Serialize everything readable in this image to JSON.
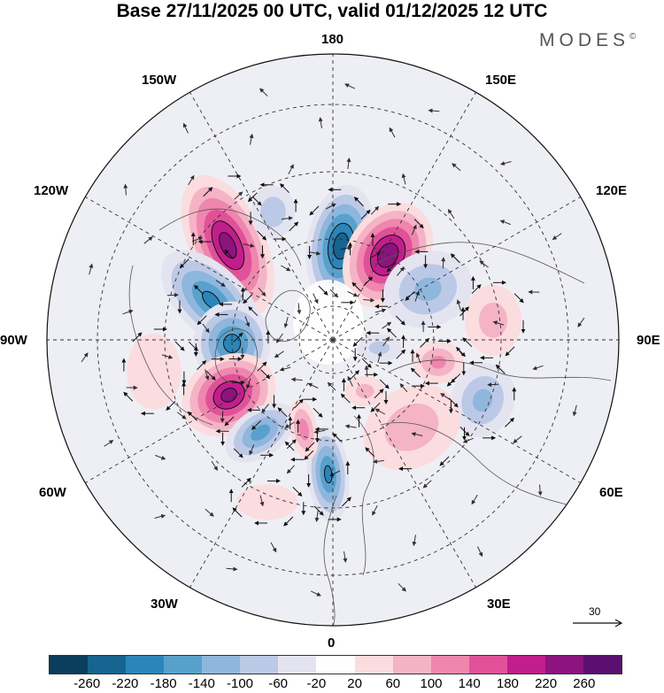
{
  "title": "Base 27/11/2025 00 UTC, valid 01/12/2025 12 UTC",
  "brand": "MODES",
  "brand_mark": "©",
  "longitudes": {
    "top": "180",
    "bottom": "0",
    "left": "90W",
    "right": "90E",
    "upper_left_outer": "150W",
    "upper_right_outer": "150E",
    "upper_left_inner": "120W",
    "upper_right_inner": "120E",
    "lower_left_inner": "60W",
    "lower_right_inner": "60E",
    "lower_left_outer": "30W",
    "lower_right_outer": "30E"
  },
  "vector_reference": {
    "label": "30"
  },
  "colorbar": {
    "colors": [
      "#0b3d5c",
      "#16648f",
      "#2b85ba",
      "#58a1cd",
      "#8fb6dc",
      "#bcc9e6",
      "#e4e4f1",
      "#ffffff",
      "#fbdcdf",
      "#f5b3c6",
      "#ef86ae",
      "#e0519a",
      "#c21d8d",
      "#8d137f",
      "#5a0f6e"
    ],
    "ticks": [
      "-260",
      "-220",
      "-180",
      "-140",
      "-100",
      "-60",
      "-20",
      "20",
      "60",
      "100",
      "140",
      "180",
      "220",
      "260"
    ]
  },
  "anomalies": [
    {
      "name": "blue-aleutian",
      "lat": 62,
      "lon": 175,
      "value": -250,
      "rx": 42,
      "ry": 75,
      "rot": 8
    },
    {
      "name": "magenta-east-siberia",
      "lat": 60,
      "lon": 147,
      "value": 255,
      "rx": 50,
      "ry": 68,
      "rot": 30
    },
    {
      "name": "magenta-alaska",
      "lat": 48,
      "lon": -132,
      "value": 240,
      "rx": 46,
      "ry": 92,
      "rot": -25
    },
    {
      "name": "blue-canada",
      "lat": 52,
      "lon": -108,
      "value": -190,
      "rx": 42,
      "ry": 78,
      "rot": -45
    },
    {
      "name": "blue-hudson",
      "lat": 60,
      "lon": -88,
      "value": -200,
      "rx": 48,
      "ry": 52,
      "rot": 0
    },
    {
      "name": "magenta-newfoundland",
      "lat": 55,
      "lon": -62,
      "value": 235,
      "rx": 60,
      "ry": 48,
      "rot": -30
    },
    {
      "name": "blue-atlantic",
      "lat": 55,
      "lon": -38,
      "value": -160,
      "rx": 50,
      "ry": 30,
      "rot": -35
    },
    {
      "name": "blue-europe",
      "lat": 50,
      "lon": -2,
      "value": -190,
      "rx": 26,
      "ry": 60,
      "rot": -5
    },
    {
      "name": "pink-greenland",
      "lat": 62,
      "lon": -18,
      "value": 120,
      "rx": 18,
      "ry": 40,
      "rot": -10
    },
    {
      "name": "blue-north-pacific-west",
      "lat": 48,
      "lon": -155,
      "value": -90,
      "rx": 30,
      "ry": 36,
      "rot": 0
    },
    {
      "name": "blue-siberia",
      "lat": 58,
      "lon": 118,
      "value": -110,
      "rx": 60,
      "ry": 50,
      "rot": -20
    },
    {
      "name": "pink-central-asia",
      "lat": 42,
      "lon": 97,
      "value": 75,
      "rx": 40,
      "ry": 50,
      "rot": 0
    },
    {
      "name": "pink-ural",
      "lat": 58,
      "lon": 78,
      "value": 110,
      "rx": 34,
      "ry": 28,
      "rot": 0
    },
    {
      "name": "blue-caspian",
      "lat": 42,
      "lon": 68,
      "value": -110,
      "rx": 42,
      "ry": 50,
      "rot": 20
    },
    {
      "name": "pink-russia",
      "lat": 55,
      "lon": 42,
      "value": 85,
      "rx": 70,
      "ry": 55,
      "rot": -30
    },
    {
      "name": "blue-kara",
      "lat": 76,
      "lon": 80,
      "value": -70,
      "rx": 32,
      "ry": 20,
      "rot": 0
    },
    {
      "name": "pink-scandinavia",
      "lat": 72,
      "lon": 32,
      "value": 70,
      "rx": 28,
      "ry": 22,
      "rot": 0
    },
    {
      "name": "pink-west-atlantic",
      "lat": 36,
      "lon": -80,
      "value": 60,
      "rx": 40,
      "ry": 56,
      "rot": 0
    },
    {
      "name": "pink-east-atlantic",
      "lat": 38,
      "lon": -22,
      "value": 45,
      "rx": 48,
      "ry": 28,
      "rot": 0
    }
  ]
}
